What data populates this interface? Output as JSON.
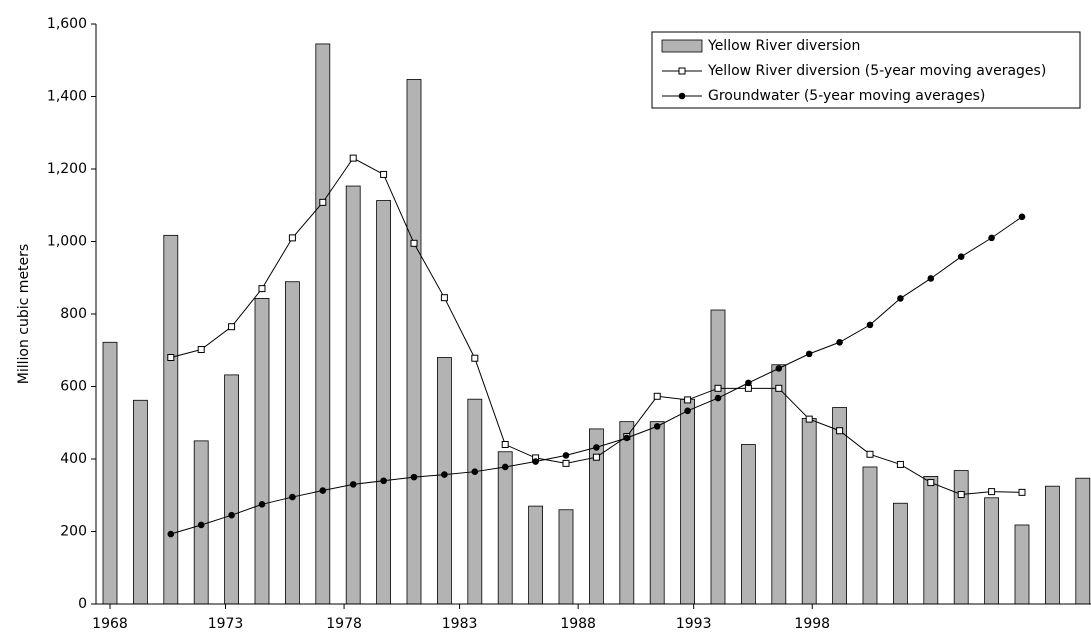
{
  "chart_data": {
    "type": "bar",
    "y_label": "Million cubic meters",
    "categories": [
      null,
      null,
      null,
      null,
      null,
      null,
      null,
      null,
      null,
      null,
      null,
      null,
      null,
      null,
      null,
      null,
      null,
      null,
      null,
      null,
      null,
      null,
      null,
      null,
      null,
      null,
      null,
      null,
      null,
      null,
      null,
      null,
      null
    ],
    "xticks": [
      {
        "value": 0,
        "label": "1968"
      },
      {
        "value": 3.8,
        "label": "1973"
      },
      {
        "value": 7.7,
        "label": "1978"
      },
      {
        "value": 11.5,
        "label": "1983"
      },
      {
        "value": 15.4,
        "label": "1988"
      },
      {
        "value": 19.2,
        "label": "1993"
      },
      {
        "value": 23.1,
        "label": "1998"
      }
    ],
    "series": [
      {
        "name": "Yellow River diversion",
        "type": "bar",
        "color": "#b3b3b3",
        "values": [
          722,
          562,
          1017,
          450,
          632,
          843,
          889,
          1545,
          1153,
          1113,
          1447,
          680,
          565,
          420,
          270,
          260,
          483,
          503,
          503,
          565,
          811,
          440,
          660,
          512,
          542,
          378,
          278,
          352,
          368,
          293,
          218,
          325,
          347
        ]
      },
      {
        "name": "Yellow River diversion (5-year moving averages)",
        "type": "line",
        "marker": "square-open",
        "color": "#000000",
        "values": [
          null,
          null,
          680,
          702,
          765,
          870,
          1010,
          1108,
          1230,
          1185,
          995,
          845,
          678,
          440,
          403,
          388,
          405,
          462,
          573,
          563,
          595,
          595,
          595,
          510,
          478,
          413,
          385,
          335,
          302,
          310,
          308,
          null,
          null
        ]
      },
      {
        "name": "Groundwater (5-year moving averages)",
        "type": "line",
        "marker": "circle-filled",
        "color": "#000000",
        "values": [
          null,
          null,
          193,
          218,
          245,
          275,
          295,
          313,
          330,
          340,
          350,
          357,
          365,
          378,
          393,
          410,
          432,
          458,
          490,
          533,
          568,
          610,
          650,
          690,
          722,
          770,
          843,
          898,
          958,
          1010,
          1068,
          null,
          null
        ]
      }
    ],
    "ylim": [
      0,
      1600
    ],
    "yticks": [
      0,
      200,
      400,
      600,
      800,
      {
        "value": 1000,
        "label": "1,000"
      },
      {
        "value": 1200,
        "label": "1,200"
      },
      {
        "value": 1400,
        "label": "1,400"
      },
      {
        "value": 1600,
        "label": "1,600"
      }
    ],
    "legend": "top-right"
  }
}
